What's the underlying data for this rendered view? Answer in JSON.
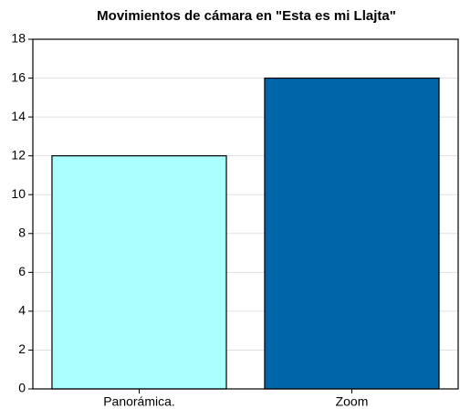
{
  "chart_data": {
    "type": "bar",
    "title": "Movimientos de cámara en \"Esta es mi Llajta\"",
    "categories": [
      "Panorámica.",
      "Zoom"
    ],
    "values": [
      12,
      16
    ],
    "colors": [
      "#aaffff",
      "#0066aa"
    ],
    "ylim": [
      0,
      18
    ],
    "yticks": [
      0,
      2,
      4,
      6,
      8,
      10,
      12,
      14,
      16,
      18
    ],
    "grid": true
  }
}
